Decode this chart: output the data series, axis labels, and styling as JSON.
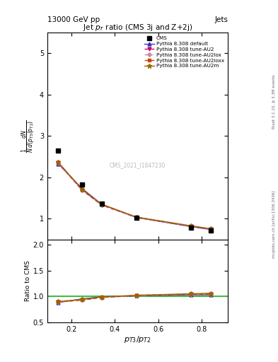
{
  "title_top": "13000 GeV pp",
  "title_right": "Jets",
  "plot_title": "Jet $p_T$ ratio (CMS 3j and Z+2j)",
  "xlabel": "$p_{T3}/p_{T2}$",
  "ylabel_main": "$\\frac{1}{N}\\frac{dN}{d(p_{T3}/p_{T2})}$",
  "ylabel_ratio": "Ratio to CMS",
  "watermark": "CMS_2021_I1847230",
  "right_label": "Rivet 3.1.10, ≥ 3.3M events",
  "right_label2": "mcplots.cern.ch [arXiv:1306.3436]",
  "cms_x": [
    0.14,
    0.25,
    0.34,
    0.5,
    0.75,
    0.84
  ],
  "cms_y": [
    2.65,
    1.82,
    1.36,
    1.02,
    0.79,
    0.72
  ],
  "pythia_default_x": [
    0.14,
    0.25,
    0.34,
    0.5,
    0.75,
    0.84
  ],
  "pythia_default_y": [
    2.33,
    1.73,
    1.35,
    1.03,
    0.81,
    0.74
  ],
  "pythia_au2_x": [
    0.14,
    0.25,
    0.34,
    0.5,
    0.75,
    0.84
  ],
  "pythia_au2_y": [
    2.35,
    1.69,
    1.33,
    1.03,
    0.82,
    0.75
  ],
  "pythia_au2lox_x": [
    0.14,
    0.25,
    0.34,
    0.5,
    0.75,
    0.84
  ],
  "pythia_au2lox_y": [
    2.35,
    1.69,
    1.33,
    1.03,
    0.82,
    0.75
  ],
  "pythia_au2loxx_x": [
    0.14,
    0.25,
    0.34,
    0.5,
    0.75,
    0.84
  ],
  "pythia_au2loxx_y": [
    2.36,
    1.7,
    1.34,
    1.04,
    0.82,
    0.75
  ],
  "pythia_au2m_x": [
    0.14,
    0.25,
    0.34,
    0.5,
    0.75,
    0.84
  ],
  "pythia_au2m_y": [
    2.37,
    1.71,
    1.35,
    1.04,
    0.83,
    0.76
  ],
  "ratio_default_y": [
    0.88,
    0.95,
    0.99,
    1.01,
    1.03,
    1.03
  ],
  "ratio_au2_y": [
    0.89,
    0.93,
    0.98,
    1.01,
    1.04,
    1.04
  ],
  "ratio_au2lox_y": [
    0.89,
    0.93,
    0.98,
    1.01,
    1.04,
    1.04
  ],
  "ratio_au2loxx_y": [
    0.89,
    0.93,
    0.98,
    1.02,
    1.04,
    1.04
  ],
  "ratio_au2m_y": [
    0.9,
    0.94,
    0.99,
    1.02,
    1.05,
    1.06
  ],
  "color_default": "#3333cc",
  "color_au2": "#cc0066",
  "color_au2lox": "#cc88aa",
  "color_au2loxx": "#cc4400",
  "color_au2m": "#996600",
  "main_ylim": [
    0.5,
    5.5
  ],
  "main_yticks": [
    1,
    2,
    3,
    4,
    5
  ],
  "ratio_ylim": [
    0.5,
    2.1
  ],
  "ratio_yticks": [
    0.5,
    1.0,
    1.5,
    2.0
  ],
  "xlim": [
    0.09,
    0.92
  ]
}
